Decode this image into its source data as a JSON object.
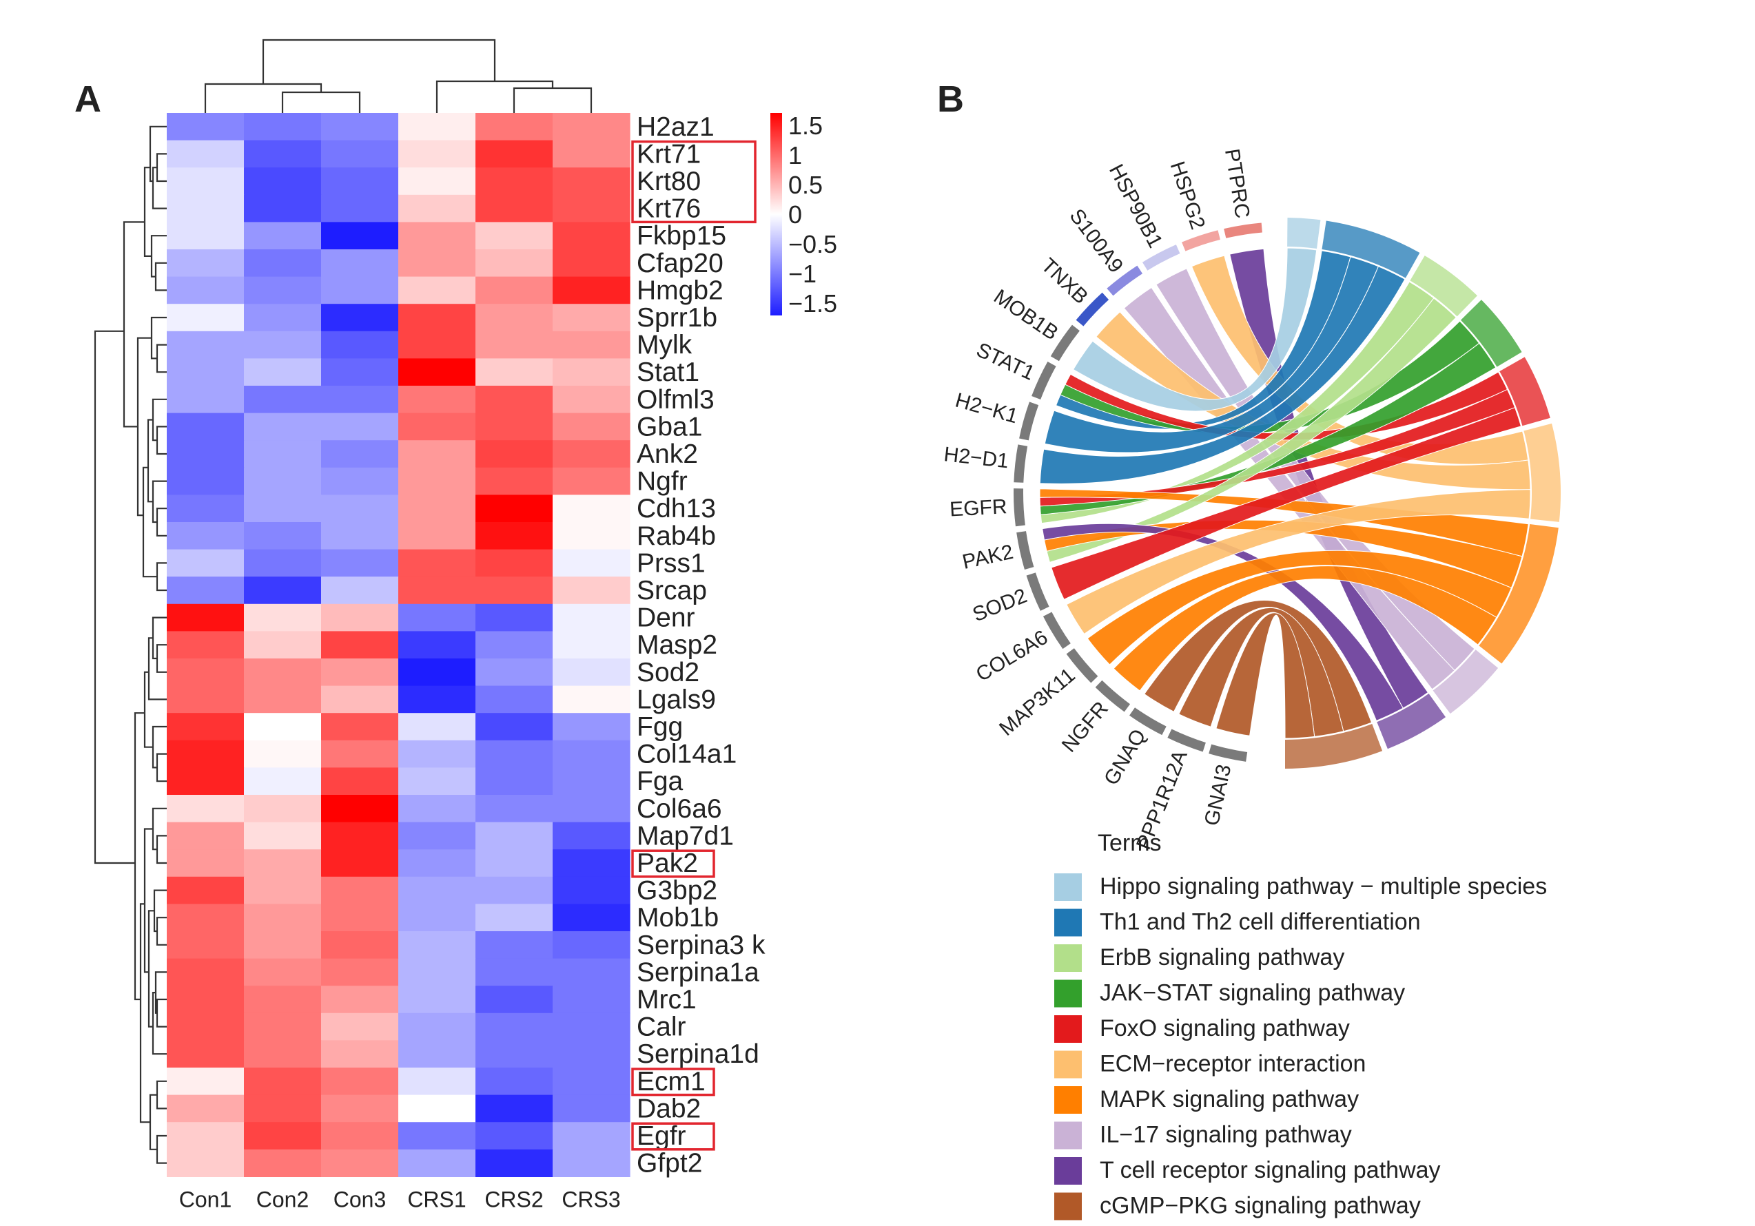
{
  "panels": {
    "a": "A",
    "b": "B"
  },
  "heatmap": {
    "type": "heatmap",
    "columns": [
      "Con1",
      "Con2",
      "Con3",
      "CRS1",
      "CRS2",
      "CRS3"
    ],
    "rows": [
      "H2az1",
      "Krt71",
      "Krt80",
      "Krt76",
      "Fkbp15",
      "Cfap20",
      "Hmgb2",
      "Sprr1b",
      "Mylk",
      "Stat1",
      "Olfml3",
      "Gba1",
      "Ank2",
      "Ngfr",
      "Cdh13",
      "Rab4b",
      "Prss1",
      "Srcap",
      "Denr",
      "Masp2",
      "Sod2",
      "Lgals9",
      "Fgg",
      "Col14a1",
      "Fga",
      "Col6a6",
      "Map7d1",
      "Pak2",
      "G3bp2",
      "Mob1b",
      "Serpina3 k",
      "Serpina1a",
      "Mrc1",
      "Calr",
      "Serpina1d",
      "Ecm1",
      "Dab2",
      "Egfr",
      "Gfpt2"
    ],
    "values": [
      [
        -0.8,
        -0.9,
        -0.8,
        0.1,
        0.8,
        0.7
      ],
      [
        -0.3,
        -1.1,
        -0.9,
        0.2,
        1.2,
        0.7
      ],
      [
        -0.2,
        -1.2,
        -1.0,
        0.1,
        1.1,
        1.0
      ],
      [
        -0.2,
        -1.2,
        -1.0,
        0.3,
        1.1,
        1.0
      ],
      [
        -0.2,
        -0.7,
        -1.5,
        0.6,
        0.3,
        1.1
      ],
      [
        -0.5,
        -0.9,
        -0.7,
        0.6,
        0.4,
        1.1
      ],
      [
        -0.6,
        -0.8,
        -0.7,
        0.3,
        0.7,
        1.3
      ],
      [
        -0.1,
        -0.7,
        -1.4,
        1.1,
        0.6,
        0.5
      ],
      [
        -0.6,
        -0.6,
        -1.1,
        1.1,
        0.6,
        0.6
      ],
      [
        -0.6,
        -0.4,
        -1.0,
        1.5,
        0.3,
        0.4
      ],
      [
        -0.6,
        -0.9,
        -0.9,
        0.8,
        1.0,
        0.5
      ],
      [
        -1.0,
        -0.6,
        -0.6,
        0.9,
        1.0,
        0.7
      ],
      [
        -1.0,
        -0.6,
        -0.8,
        0.6,
        1.1,
        0.9
      ],
      [
        -1.0,
        -0.6,
        -0.7,
        0.6,
        1.0,
        0.8
      ],
      [
        -0.9,
        -0.6,
        -0.6,
        0.6,
        1.5,
        0.05
      ],
      [
        -0.7,
        -0.8,
        -0.6,
        0.6,
        1.4,
        0.05
      ],
      [
        -0.4,
        -0.9,
        -0.8,
        1.0,
        1.1,
        -0.1
      ],
      [
        -0.8,
        -1.3,
        -0.4,
        1.0,
        1.0,
        0.3
      ],
      [
        1.4,
        0.2,
        0.4,
        -0.9,
        -1.1,
        -0.1
      ],
      [
        1.0,
        0.3,
        1.1,
        -1.3,
        -0.8,
        -0.1
      ],
      [
        0.9,
        0.7,
        0.6,
        -1.5,
        -0.7,
        -0.2
      ],
      [
        0.9,
        0.7,
        0.4,
        -1.4,
        -0.9,
        0.05
      ],
      [
        1.2,
        0.0,
        1.0,
        -0.2,
        -1.2,
        -0.7
      ],
      [
        1.3,
        0.05,
        0.8,
        -0.5,
        -0.9,
        -0.8
      ],
      [
        1.3,
        -0.1,
        1.1,
        -0.4,
        -0.9,
        -0.8
      ],
      [
        0.2,
        0.3,
        1.5,
        -0.6,
        -0.8,
        -0.8
      ],
      [
        0.6,
        0.2,
        1.3,
        -0.8,
        -0.5,
        -1.1
      ],
      [
        0.6,
        0.5,
        1.3,
        -0.7,
        -0.5,
        -1.3
      ],
      [
        1.1,
        0.5,
        0.8,
        -0.6,
        -0.6,
        -1.3
      ],
      [
        0.9,
        0.6,
        0.8,
        -0.6,
        -0.4,
        -1.4
      ],
      [
        0.9,
        0.6,
        0.9,
        -0.5,
        -0.9,
        -1.0
      ],
      [
        1.0,
        0.7,
        0.8,
        -0.5,
        -0.9,
        -0.9
      ],
      [
        1.0,
        0.8,
        0.6,
        -0.5,
        -1.1,
        -0.9
      ],
      [
        1.0,
        0.8,
        0.4,
        -0.6,
        -0.9,
        -0.9
      ],
      [
        1.0,
        0.8,
        0.5,
        -0.6,
        -0.9,
        -0.9
      ],
      [
        0.1,
        1.0,
        0.8,
        -0.2,
        -1.0,
        -0.9
      ],
      [
        0.5,
        1.0,
        0.7,
        0.0,
        -1.4,
        -0.9
      ],
      [
        0.3,
        1.1,
        0.8,
        -0.9,
        -1.1,
        -0.6
      ],
      [
        0.3,
        0.8,
        0.7,
        -0.6,
        -1.4,
        -0.6
      ]
    ],
    "highlighted": [
      "Krt71",
      "Krt80",
      "Krt76",
      "Pak2",
      "Ecm1",
      "Egfr"
    ],
    "scale": {
      "min": -1.5,
      "max": 1.5,
      "ticks": [
        "1.5",
        "1",
        "0.5",
        "0",
        "−0.5",
        "−1",
        "−1.5"
      ],
      "low_color": "#1d1dff",
      "mid_color": "#ffffff",
      "high_color": "#ff0000"
    },
    "highlight_color": "#e2262f"
  },
  "chord": {
    "type": "chord",
    "genes": [
      "PTPRC",
      "HSPG2",
      "HSP90B1",
      "S100A9",
      "TNXB",
      "MOB1B",
      "STAT1",
      "H2−K1",
      "H2−D1",
      "EGFR",
      "PAK2",
      "SOD2",
      "COL6A6",
      "MAP3K11",
      "NGFR",
      "GNAQ",
      "PPP1R12A",
      "GNAI3"
    ],
    "gene_colors": [
      "#e9867e",
      "#f2a4a0",
      "#c8c8ee",
      "#8a8ae0",
      "#3a57c8",
      "#7a7a7a",
      "#7a7a7a",
      "#7a7a7a",
      "#7a7a7a",
      "#7a7a7a",
      "#7a7a7a",
      "#7a7a7a",
      "#7a7a7a",
      "#7a7a7a",
      "#7a7a7a",
      "#7a7a7a",
      "#7a7a7a",
      "#7a7a7a"
    ],
    "legend_title": "Terms",
    "terms": [
      {
        "name": "Hippo signaling pathway − multiple species",
        "color": "#a6cee3"
      },
      {
        "name": "Th1 and Th2 cell differentiation",
        "color": "#1f78b4"
      },
      {
        "name": "ErbB signaling pathway",
        "color": "#b2df8a"
      },
      {
        "name": "JAK−STAT signaling pathway",
        "color": "#33a02c"
      },
      {
        "name": "FoxO signaling pathway",
        "color": "#e31a1c"
      },
      {
        "name": "ECM−receptor interaction",
        "color": "#fdbf6f"
      },
      {
        "name": "MAPK signaling pathway",
        "color": "#ff7f00"
      },
      {
        "name": "IL−17 signaling pathway",
        "color": "#cab2d6"
      },
      {
        "name": "T cell receptor signaling pathway",
        "color": "#6a3d9a"
      },
      {
        "name": "cGMP−PKG signaling pathway",
        "color": "#b15928"
      }
    ],
    "links": [
      {
        "gene": "PTPRC",
        "term": "T cell receptor signaling pathway"
      },
      {
        "gene": "HSPG2",
        "term": "ECM−receptor interaction"
      },
      {
        "gene": "HSP90B1",
        "term": "IL−17 signaling pathway"
      },
      {
        "gene": "S100A9",
        "term": "IL−17 signaling pathway"
      },
      {
        "gene": "TNXB",
        "term": "ECM−receptor interaction"
      },
      {
        "gene": "MOB1B",
        "term": "Hippo signaling pathway − multiple species"
      },
      {
        "gene": "STAT1",
        "term": "Th1 and Th2 cell differentiation"
      },
      {
        "gene": "STAT1",
        "term": "JAK−STAT signaling pathway"
      },
      {
        "gene": "STAT1",
        "term": "FoxO signaling pathway"
      },
      {
        "gene": "H2−K1",
        "term": "Th1 and Th2 cell differentiation"
      },
      {
        "gene": "H2−D1",
        "term": "Th1 and Th2 cell differentiation"
      },
      {
        "gene": "EGFR",
        "term": "ErbB signaling pathway"
      },
      {
        "gene": "EGFR",
        "term": "JAK−STAT signaling pathway"
      },
      {
        "gene": "EGFR",
        "term": "FoxO signaling pathway"
      },
      {
        "gene": "EGFR",
        "term": "MAPK signaling pathway"
      },
      {
        "gene": "PAK2",
        "term": "ErbB signaling pathway"
      },
      {
        "gene": "PAK2",
        "term": "MAPK signaling pathway"
      },
      {
        "gene": "PAK2",
        "term": "T cell receptor signaling pathway"
      },
      {
        "gene": "SOD2",
        "term": "FoxO signaling pathway"
      },
      {
        "gene": "COL6A6",
        "term": "ECM−receptor interaction"
      },
      {
        "gene": "MAP3K11",
        "term": "MAPK signaling pathway"
      },
      {
        "gene": "NGFR",
        "term": "MAPK signaling pathway"
      },
      {
        "gene": "GNAQ",
        "term": "cGMP−PKG signaling pathway"
      },
      {
        "gene": "PPP1R12A",
        "term": "cGMP−PKG signaling pathway"
      },
      {
        "gene": "GNAI3",
        "term": "cGMP−PKG signaling pathway"
      }
    ]
  }
}
